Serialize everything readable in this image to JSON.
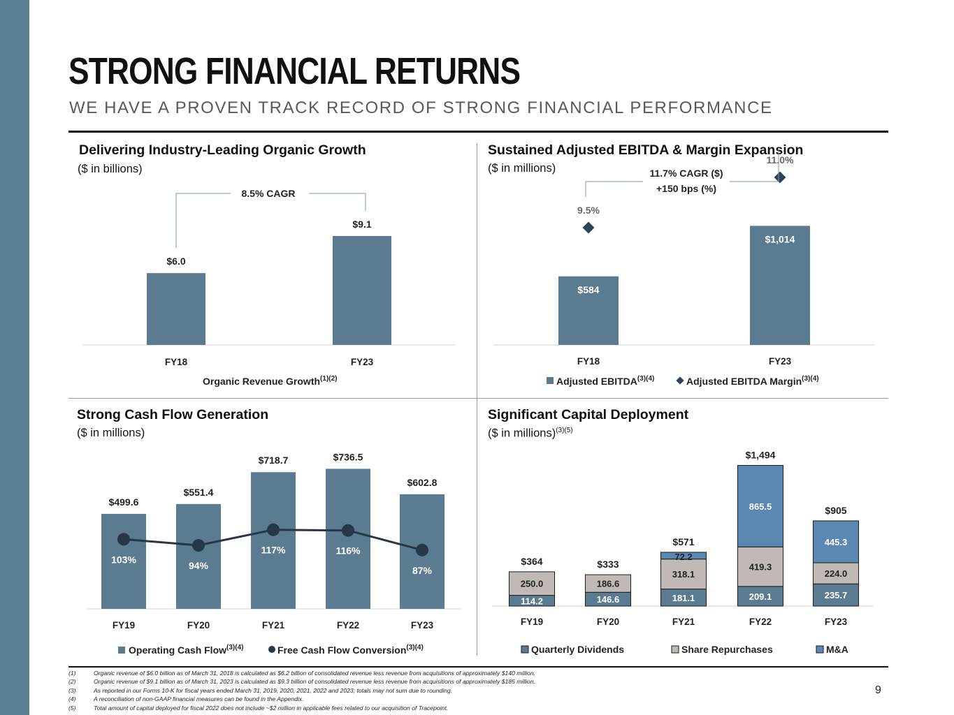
{
  "page": {
    "title": "STRONG FINANCIAL RETURNS",
    "subtitle": "WE HAVE A PROVEN TRACK RECORD OF STRONG FINANCIAL PERFORMANCE",
    "page_number": "9",
    "footnotes": [
      {
        "num": "(1)",
        "text": "Organic revenue of $6.0 billion as of March 31, 2018 is calculated as $6.2 billion of consolidated revenue less revenue from acquisitions of approximately $140 million."
      },
      {
        "num": "(2)",
        "text": "Organic revenue of $9.1 billion as of March 31, 2023 is calculated as $9.3 billion of consolidated revenue less revenue from acquisitions of approximately $185 million."
      },
      {
        "num": "(3)",
        "text": "As reported in our Forms 10-K for fiscal years ended March 31, 2019, 2020, 2021, 2022 and 2023; totals may not sum due to rounding."
      },
      {
        "num": "(4)",
        "text": "A reconciliation of non-GAAP financial measures can be found in the Appendix."
      },
      {
        "num": "(5)",
        "text": "Total amount of capital deployed for fiscal 2022 does not include ~$2 million in applicable fees related to our acquisition of Tracepoint."
      }
    ]
  },
  "colors": {
    "bar": "#5b7b91",
    "marker": "#2f4557",
    "line": "#253748",
    "dividends": "#5b7b91",
    "repurchases": "#c0b9b5",
    "ma": "#5a88b2",
    "sidebar": "#5b7f95"
  },
  "chart_data": [
    {
      "id": "organic_growth",
      "type": "bar",
      "title": "Delivering Industry-Leading Organic Growth",
      "subtitle": "($ in billions)",
      "categories": [
        "FY18",
        "FY23"
      ],
      "values": [
        6.0,
        9.1
      ],
      "value_labels": [
        "$6.0",
        "$9.1"
      ],
      "ylim": [
        0,
        10.5
      ],
      "annotation": "8.5% CAGR",
      "legend": {
        "label": "Organic Revenue Growth",
        "sup": "(1)(2)",
        "position": "bottom"
      }
    },
    {
      "id": "ebitda",
      "type": "bar",
      "title": "Sustained Adjusted EBITDA & Margin Expansion",
      "subtitle": "($ in millions)",
      "categories": [
        "FY18",
        "FY23"
      ],
      "values": [
        584,
        1014
      ],
      "value_labels": [
        "$584",
        "$1,014"
      ],
      "ylim": [
        0,
        1100
      ],
      "margin_values": [
        9.5,
        11.0
      ],
      "margin_labels": [
        "9.5%",
        "11.0%"
      ],
      "margin_ylim": [
        6.0,
        11.5
      ],
      "annotation": [
        "11.7% CAGR ($)",
        "+150 bps (%)"
      ],
      "legend": [
        {
          "label": "Adjusted EBITDA",
          "sup": "(3)(4)",
          "marker": "square"
        },
        {
          "label": "Adjusted EBITDA Margin",
          "sup": "(3)(4)",
          "marker": "diamond"
        }
      ]
    },
    {
      "id": "cash_flow",
      "type": "bar",
      "title": "Strong Cash Flow Generation",
      "subtitle": "($ in millions)",
      "categories": [
        "FY19",
        "FY20",
        "FY21",
        "FY22",
        "FY23"
      ],
      "values": [
        499.6,
        551.4,
        718.7,
        736.5,
        602.8
      ],
      "value_labels": [
        "$499.6",
        "$551.4",
        "$718.7",
        "$736.5",
        "$602.8"
      ],
      "ylim": [
        0,
        760
      ],
      "conversion_values": [
        103,
        94,
        117,
        116,
        87
      ],
      "conversion_labels": [
        "103%",
        "94%",
        "117%",
        "116%",
        "87%"
      ],
      "conversion_ylim": [
        0,
        250
      ],
      "legend": [
        {
          "label": "Operating Cash Flow",
          "sup": "(3)(4)",
          "marker": "square"
        },
        {
          "label": "Free Cash Flow Conversion",
          "sup": "(3)(4)",
          "marker": "circle"
        }
      ]
    },
    {
      "id": "capital_deployment",
      "type": "stacked_bar",
      "title": "Significant Capital Deployment",
      "subtitle": "($ in millions)",
      "subtitle_sup": "(3)(5)",
      "categories": [
        "FY19",
        "FY20",
        "FY21",
        "FY22",
        "FY23"
      ],
      "series": [
        {
          "name": "Quarterly Dividends",
          "values": [
            114.2,
            146.6,
            181.1,
            209.1,
            235.7
          ],
          "labels": [
            "114.2",
            "146.6",
            "181.1",
            "209.1",
            "235.7"
          ]
        },
        {
          "name": "Share Repurchases",
          "values": [
            250.0,
            186.6,
            318.1,
            419.3,
            224.0
          ],
          "labels": [
            "250.0",
            "186.6",
            "318.1",
            "419.3",
            "224.0"
          ]
        },
        {
          "name": "M&A",
          "values": [
            0,
            0,
            72.2,
            865.5,
            445.3
          ],
          "labels": [
            "",
            "",
            "72.2",
            "865.5",
            "445.3"
          ]
        }
      ],
      "totals": [
        "$364",
        "$333",
        "$571",
        "$1,494",
        "$905"
      ],
      "ylim": [
        0,
        1520
      ]
    }
  ]
}
